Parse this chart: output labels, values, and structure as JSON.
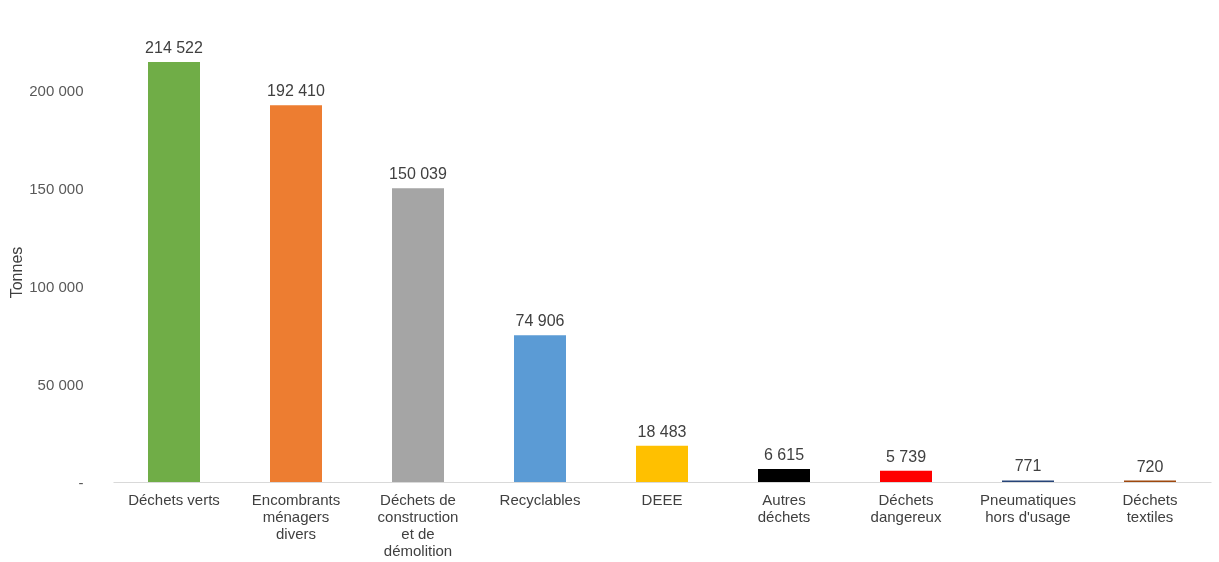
{
  "chart_data": {
    "type": "bar",
    "ylabel": "Tonnes",
    "categories": [
      "Déchets verts",
      "Encombrants ménagers divers",
      "Déchets de construction et de démolition",
      "Recyclables",
      "DEEE",
      "Autres déchets",
      "Déchets dangereux",
      "Pneumatiques hors d'usage",
      "Déchets textiles"
    ],
    "values": [
      214522,
      192410,
      150039,
      74906,
      18483,
      6615,
      5739,
      771,
      720
    ],
    "value_labels": [
      "214 522",
      "192 410",
      "150 039",
      "74 906",
      "18 483",
      "6 615",
      "5 739",
      "771",
      "720"
    ],
    "colors": [
      "#70ad47",
      "#ed7d31",
      "#a5a5a5",
      "#5b9bd5",
      "#ffc000",
      "#000000",
      "#ff0000",
      "#264478",
      "#9e480e"
    ],
    "yticks": [
      {
        "value": 0,
        "label": "-"
      },
      {
        "value": 50000,
        "label": "50 000"
      },
      {
        "value": 100000,
        "label": "100 000"
      },
      {
        "value": 150000,
        "label": "150 000"
      },
      {
        "value": 200000,
        "label": "200 000"
      }
    ],
    "ylim": [
      0,
      214522
    ],
    "grid": false
  }
}
